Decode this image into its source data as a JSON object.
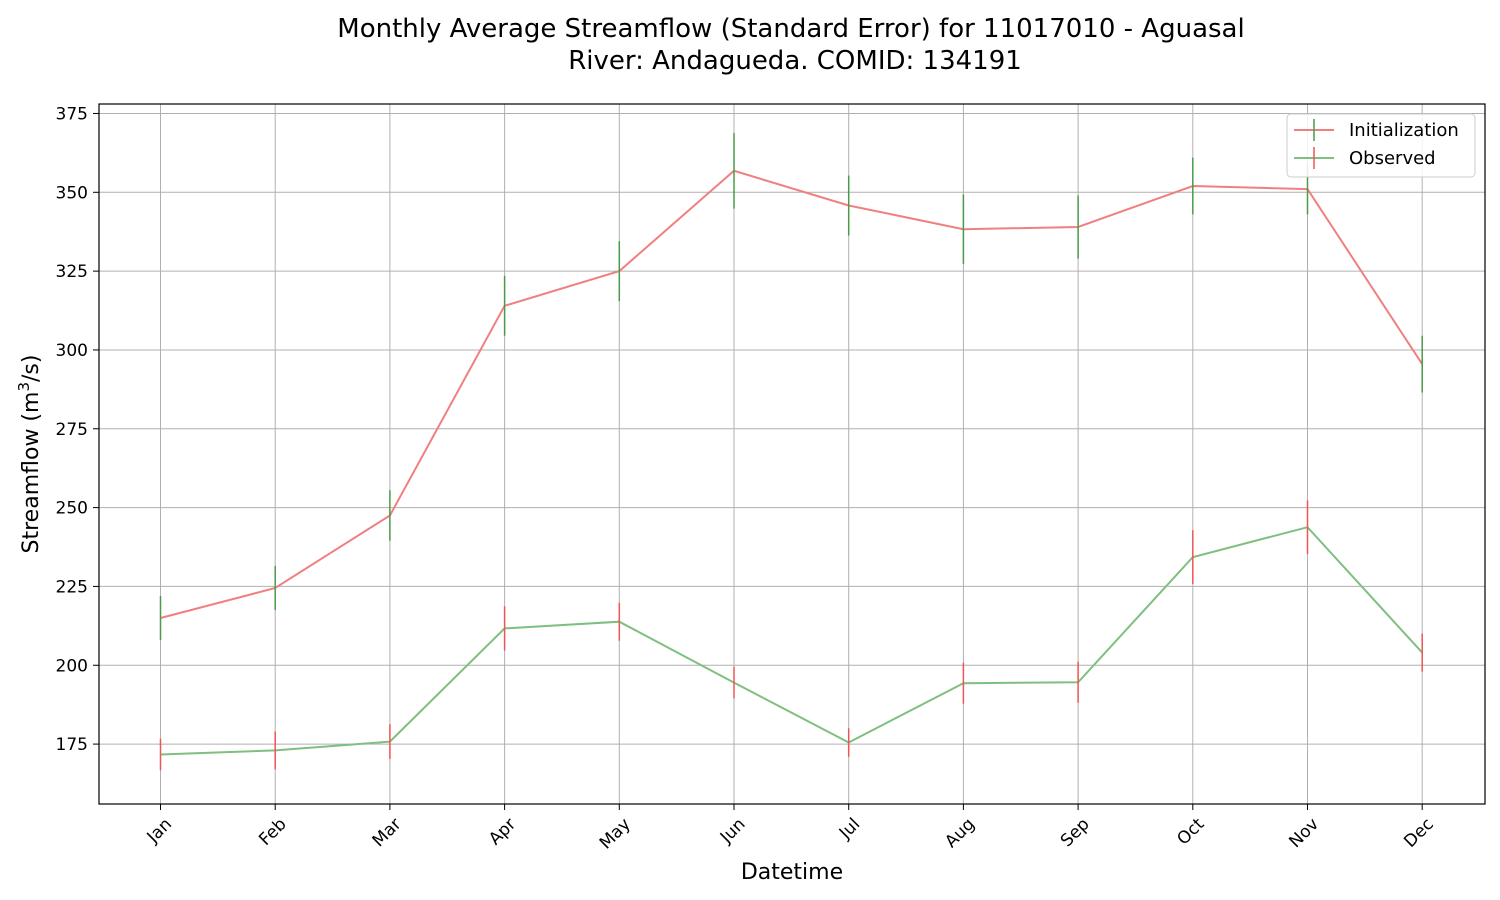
{
  "chart_data": {
    "type": "line",
    "title_line1": "Monthly Average Streamflow (Standard Error) for 11017010 - Aguasal",
    "title_line2": "River: Andagueda. COMID: 134191",
    "xlabel": "Datetime",
    "ylabel_main": "Streamflow (m",
    "ylabel_sup": "3",
    "ylabel_tail": "/s)",
    "categories": [
      "Jan",
      "Feb",
      "Mar",
      "Apr",
      "May",
      "Jun",
      "Jul",
      "Aug",
      "Sep",
      "Oct",
      "Nov",
      "Dec"
    ],
    "yticks": [
      175,
      200,
      225,
      250,
      275,
      300,
      325,
      350,
      375
    ],
    "ylim": [
      156,
      378
    ],
    "grid": true,
    "legend_position": "top-right",
    "series": [
      {
        "name": "Initialization",
        "line_color": "#f08080",
        "error_color": "#4a9a4a",
        "values": [
          215,
          224.5,
          247.5,
          314,
          325,
          356.8,
          345.8,
          338.3,
          339,
          352,
          351,
          295.5
        ],
        "errors": [
          7,
          7,
          8,
          9.5,
          9.5,
          12,
          9.5,
          11,
          10,
          9,
          8,
          9
        ]
      },
      {
        "name": "Observed",
        "line_color": "#7fbf7f",
        "error_color": "#ee5555",
        "values": [
          171.7,
          173,
          175.8,
          211.7,
          213.8,
          194.5,
          175.5,
          194.3,
          194.6,
          234.3,
          243.8,
          204
        ],
        "errors": [
          5,
          6,
          5.5,
          7,
          6,
          5,
          4.5,
          6.5,
          6.5,
          8.5,
          8.5,
          6
        ]
      }
    ]
  }
}
